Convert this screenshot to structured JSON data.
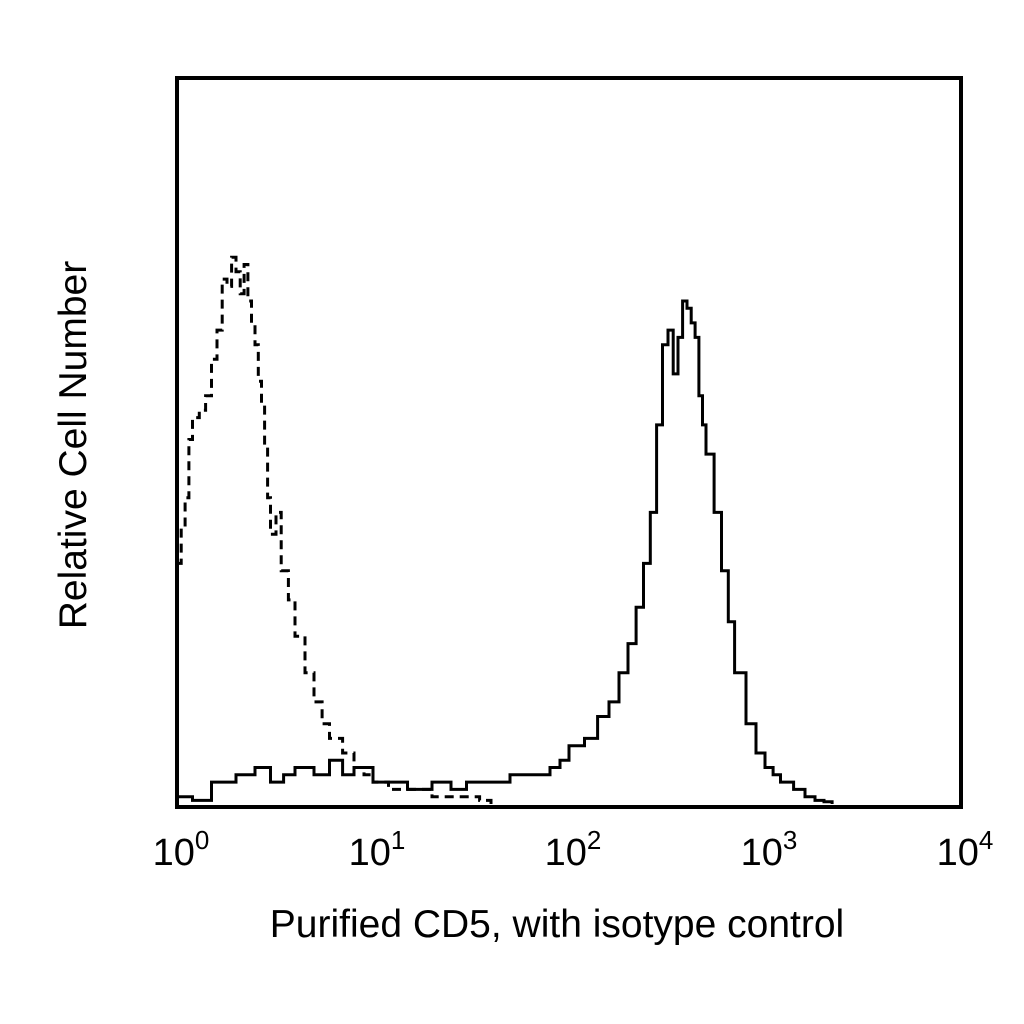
{
  "chart_data": {
    "type": "line",
    "title": "",
    "xlabel": "Purified CD5, with isotype control",
    "ylabel": "Relative Cell Number",
    "x_scale": "log",
    "xlim": [
      1,
      10000
    ],
    "ylim": [
      0,
      100
    ],
    "grid": false,
    "legend": "none",
    "x_ticks": [
      {
        "base": "10",
        "exp": "0",
        "value": 1
      },
      {
        "base": "10",
        "exp": "1",
        "value": 10
      },
      {
        "base": "10",
        "exp": "2",
        "value": 100
      },
      {
        "base": "10",
        "exp": "3",
        "value": 1000
      },
      {
        "base": "10",
        "exp": "4",
        "value": 10000
      }
    ],
    "series": [
      {
        "line_style": "dashed",
        "color": "#000000",
        "x": [
          1.0,
          1.05,
          1.1,
          1.15,
          1.2,
          1.3,
          1.4,
          1.5,
          1.6,
          1.7,
          1.8,
          1.9,
          2.0,
          2.1,
          2.2,
          2.3,
          2.4,
          2.5,
          2.6,
          2.7,
          2.8,
          2.9,
          3.0,
          3.2,
          3.4,
          3.7,
          4.0,
          4.5,
          5.0,
          5.5,
          6.0,
          7.0,
          8.0,
          9.0,
          10,
          12,
          15,
          20,
          25,
          30,
          35,
          40
        ],
        "y": [
          33,
          38,
          42,
          50,
          53,
          54,
          56,
          61,
          65,
          72,
          71,
          75,
          73,
          70,
          74,
          69,
          66,
          63,
          58,
          55,
          49,
          42,
          37,
          40,
          32,
          28,
          23,
          18,
          14,
          11,
          9,
          7,
          5,
          4,
          3,
          2,
          2,
          1,
          1,
          1,
          0.5,
          0
        ]
      },
      {
        "line_style": "solid",
        "color": "#000000",
        "x": [
          1.0,
          1.2,
          1.5,
          2.0,
          2.5,
          3.0,
          3.5,
          4.0,
          5.0,
          6.0,
          7.0,
          8.0,
          10,
          12,
          15,
          20,
          25,
          30,
          40,
          50,
          60,
          70,
          80,
          90,
          100,
          120,
          140,
          160,
          180,
          200,
          220,
          240,
          260,
          280,
          300,
          320,
          340,
          360,
          380,
          400,
          420,
          440,
          460,
          480,
          500,
          550,
          600,
          650,
          700,
          800,
          900,
          1000,
          1100,
          1200,
          1400,
          1600,
          1800,
          2000,
          2200
        ],
        "y": [
          1,
          0.5,
          3,
          4,
          5,
          3,
          4,
          5,
          4,
          6,
          4,
          5,
          3,
          3,
          2,
          3,
          2,
          3,
          3,
          4,
          4,
          4,
          5,
          6,
          8,
          9,
          12,
          14,
          18,
          22,
          27,
          33,
          40,
          52,
          63,
          65,
          59,
          64,
          69,
          68,
          66,
          64,
          56,
          52,
          48,
          40,
          32,
          25,
          18,
          11,
          7,
          5,
          4,
          3,
          2,
          1,
          0.5,
          0.3,
          0
        ]
      }
    ]
  }
}
